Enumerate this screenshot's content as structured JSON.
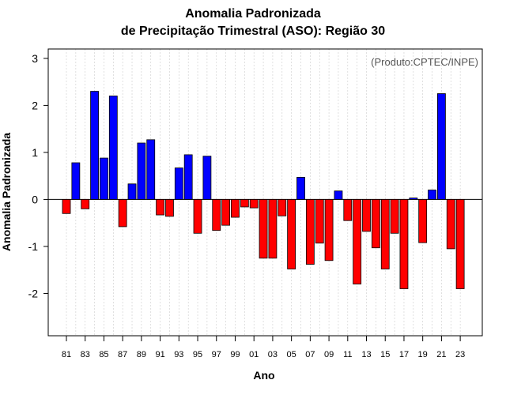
{
  "chart_data": {
    "type": "bar",
    "title_line1": "Anomalia Padronizada",
    "title_line2": "de Precipitação Trimestral (ASO): Região 30",
    "xlabel": "Ano",
    "ylabel": "Anomalia Padronizada",
    "annotation": "(Produto:CPTEC/INPE)",
    "ylim": [
      -2.9,
      3.2
    ],
    "yticks": [
      -2,
      -1,
      0,
      1,
      2,
      3
    ],
    "ytick_labels": [
      "-2",
      "-1",
      "0",
      "1",
      "2",
      "3"
    ],
    "years": [
      1981,
      1982,
      1983,
      1984,
      1985,
      1986,
      1987,
      1988,
      1989,
      1990,
      1991,
      1992,
      1993,
      1994,
      1995,
      1996,
      1997,
      1998,
      1999,
      2000,
      2001,
      2002,
      2003,
      2004,
      2005,
      2006,
      2007,
      2008,
      2009,
      2010,
      2011,
      2012,
      2013,
      2014,
      2015,
      2016,
      2017,
      2018,
      2019,
      2020,
      2021,
      2022,
      2023
    ],
    "xtick_labels": [
      "81",
      "83",
      "85",
      "87",
      "89",
      "91",
      "93",
      "95",
      "97",
      "99",
      "01",
      "03",
      "05",
      "07",
      "09",
      "11",
      "13",
      "15",
      "17",
      "19",
      "21",
      "23"
    ],
    "values": [
      -0.3,
      0.78,
      -0.2,
      2.3,
      0.88,
      2.2,
      -0.58,
      0.33,
      1.2,
      1.27,
      -0.33,
      -0.36,
      0.67,
      0.95,
      -0.72,
      0.92,
      -0.66,
      -0.55,
      -0.38,
      -0.16,
      -0.18,
      -1.25,
      -1.25,
      -0.35,
      -1.48,
      0.47,
      -1.38,
      -0.93,
      -1.3,
      0.18,
      -0.45,
      -1.8,
      -0.68,
      -1.03,
      -1.48,
      -0.72,
      -1.9,
      0.03,
      -0.92,
      0.2,
      2.25,
      -1.05,
      -1.9
    ],
    "colors": {
      "positive": "#0000ff",
      "negative": "#ff0000"
    }
  }
}
